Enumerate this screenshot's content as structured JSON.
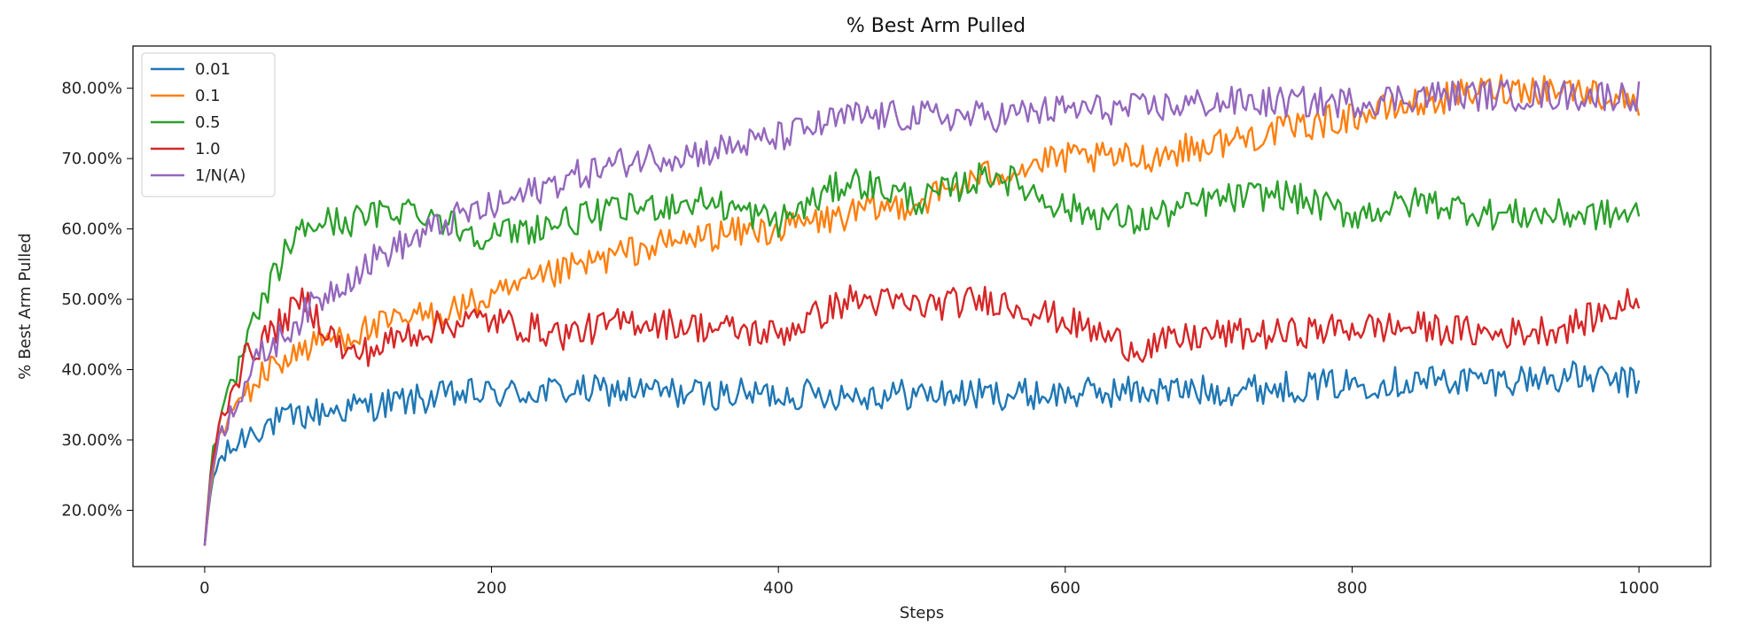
{
  "chart_data": {
    "type": "line",
    "title": "% Best Arm Pulled",
    "xlabel": "Steps",
    "ylabel": "% Best Arm Pulled",
    "xlim": [
      -50,
      1050
    ],
    "ylim": [
      0.12,
      0.86
    ],
    "xticks": [
      0,
      200,
      400,
      600,
      800,
      1000
    ],
    "xtick_labels": [
      "0",
      "200",
      "400",
      "600",
      "800",
      "1000"
    ],
    "yticks": [
      0.2,
      0.3,
      0.4,
      0.5,
      0.6,
      0.7,
      0.8
    ],
    "ytick_labels": [
      "20.00%",
      "30.00%",
      "40.00%",
      "50.00%",
      "60.00%",
      "70.00%",
      "80.00%"
    ],
    "grid": false,
    "legend_position": "top-left",
    "series": [
      {
        "name": "0.01",
        "color": "#1f77b4",
        "x": [
          0,
          5,
          10,
          20,
          30,
          40,
          50,
          60,
          70,
          80,
          100,
          120,
          140,
          160,
          180,
          200,
          250,
          300,
          350,
          400,
          450,
          500,
          550,
          600,
          650,
          700,
          750,
          800,
          850,
          900,
          950,
          1000
        ],
        "y": [
          0.15,
          0.24,
          0.27,
          0.29,
          0.31,
          0.32,
          0.325,
          0.33,
          0.335,
          0.34,
          0.345,
          0.35,
          0.355,
          0.36,
          0.365,
          0.365,
          0.37,
          0.37,
          0.365,
          0.365,
          0.365,
          0.365,
          0.365,
          0.365,
          0.37,
          0.37,
          0.375,
          0.38,
          0.385,
          0.385,
          0.39,
          0.38
        ]
      },
      {
        "name": "0.1",
        "color": "#ff7f0e",
        "x": [
          0,
          5,
          10,
          20,
          30,
          40,
          50,
          60,
          70,
          80,
          100,
          120,
          140,
          160,
          180,
          200,
          250,
          300,
          350,
          400,
          450,
          500,
          550,
          600,
          650,
          700,
          750,
          800,
          850,
          900,
          950,
          1000
        ],
        "y": [
          0.15,
          0.25,
          0.3,
          0.34,
          0.37,
          0.39,
          0.41,
          0.42,
          0.43,
          0.44,
          0.45,
          0.46,
          0.47,
          0.48,
          0.49,
          0.5,
          0.54,
          0.57,
          0.59,
          0.6,
          0.62,
          0.64,
          0.68,
          0.7,
          0.7,
          0.72,
          0.74,
          0.76,
          0.78,
          0.8,
          0.8,
          0.78
        ]
      },
      {
        "name": "0.5",
        "color": "#2ca02c",
        "x": [
          0,
          5,
          10,
          20,
          30,
          40,
          50,
          60,
          70,
          80,
          100,
          120,
          140,
          160,
          180,
          200,
          250,
          300,
          350,
          400,
          450,
          500,
          550,
          600,
          650,
          700,
          750,
          800,
          850,
          900,
          950,
          1000
        ],
        "y": [
          0.15,
          0.28,
          0.32,
          0.38,
          0.44,
          0.49,
          0.54,
          0.58,
          0.6,
          0.61,
          0.61,
          0.62,
          0.63,
          0.62,
          0.6,
          0.59,
          0.61,
          0.63,
          0.64,
          0.61,
          0.67,
          0.64,
          0.68,
          0.63,
          0.61,
          0.64,
          0.65,
          0.62,
          0.64,
          0.62,
          0.62,
          0.62
        ]
      },
      {
        "name": "1.0",
        "color": "#d62728",
        "x": [
          0,
          5,
          10,
          20,
          30,
          40,
          50,
          60,
          70,
          80,
          100,
          120,
          140,
          160,
          180,
          200,
          250,
          300,
          350,
          400,
          450,
          500,
          550,
          600,
          650,
          700,
          750,
          800,
          850,
          900,
          950,
          1000
        ],
        "y": [
          0.15,
          0.27,
          0.32,
          0.38,
          0.42,
          0.44,
          0.46,
          0.48,
          0.5,
          0.47,
          0.42,
          0.43,
          0.45,
          0.46,
          0.47,
          0.47,
          0.45,
          0.47,
          0.46,
          0.45,
          0.5,
          0.49,
          0.5,
          0.47,
          0.43,
          0.45,
          0.45,
          0.46,
          0.46,
          0.45,
          0.46,
          0.5
        ]
      },
      {
        "name": "1/N(A)",
        "color": "#9467bd",
        "x": [
          0,
          5,
          10,
          20,
          30,
          40,
          50,
          60,
          70,
          80,
          100,
          120,
          140,
          160,
          180,
          200,
          250,
          300,
          350,
          400,
          450,
          500,
          550,
          600,
          650,
          700,
          750,
          800,
          850,
          900,
          950,
          1000
        ],
        "y": [
          0.15,
          0.26,
          0.3,
          0.35,
          0.39,
          0.42,
          0.44,
          0.46,
          0.48,
          0.5,
          0.53,
          0.56,
          0.58,
          0.6,
          0.62,
          0.63,
          0.67,
          0.7,
          0.71,
          0.73,
          0.76,
          0.76,
          0.76,
          0.77,
          0.77,
          0.78,
          0.78,
          0.78,
          0.79,
          0.79,
          0.79,
          0.79
        ]
      }
    ]
  }
}
